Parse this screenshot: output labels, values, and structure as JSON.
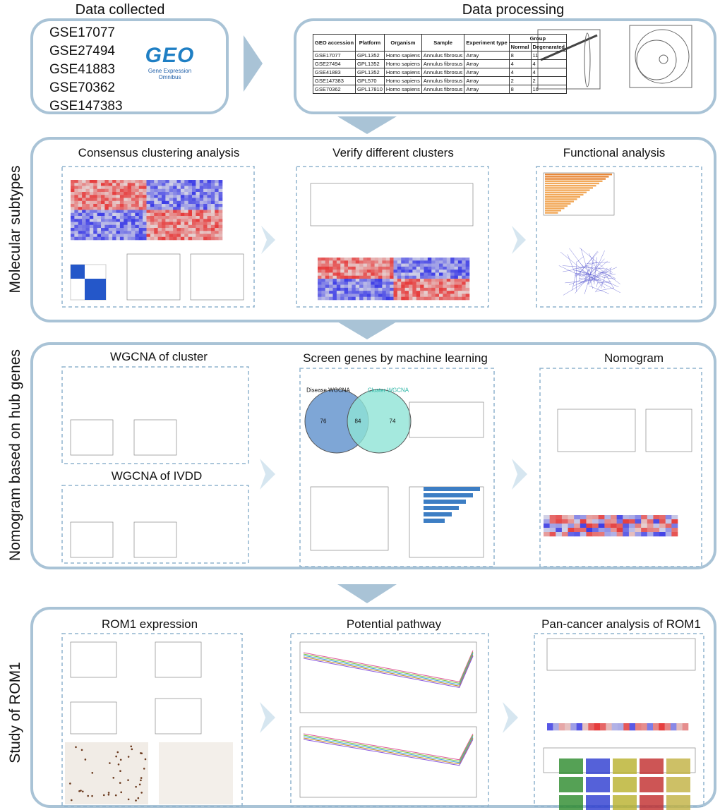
{
  "header": {
    "data_collected": "Data collected",
    "data_processing": "Data processing"
  },
  "datasets": [
    "GSE17077",
    "GSE27494",
    "GSE41883",
    "GSE70362",
    "GSE147383"
  ],
  "geo_logo": {
    "mark": "GEO",
    "caption": "Gene Expression Omnibus"
  },
  "table": {
    "columns": [
      "GEO accession",
      "Platform",
      "Organism",
      "Sample",
      "Experiment type"
    ],
    "group": "Group",
    "subcolumns": [
      "Normal",
      "Degenarated"
    ],
    "rows": [
      [
        "GSE17077",
        "GPL1352",
        "Homo sapiens",
        "Annulus fibrosus",
        "Array",
        "8",
        "11"
      ],
      [
        "GSE27494",
        "GPL1352",
        "Homo sapiens",
        "Annulus fibrosus",
        "Array",
        "4",
        "4"
      ],
      [
        "GSE41883",
        "GPL1352",
        "Homo sapiens",
        "Annulus fibrosus",
        "Array",
        "4",
        "4"
      ],
      [
        "GSE147383",
        "GPL570",
        "Homo sapiens",
        "Annulus fibrosus",
        "Array",
        "2",
        "2"
      ],
      [
        "GSE70362",
        "GPL17810",
        "Homo sapiens",
        "Annulus fibrosus",
        "Array",
        "8",
        "16"
      ]
    ]
  },
  "sections": [
    {
      "label": "Molecular subtypes",
      "panels": [
        "Consensus clustering analysis",
        "Verify different clusters",
        "Functional analysis"
      ]
    },
    {
      "label": "Nomogram based on hub genes",
      "panels": [
        "WGCNA of cluster",
        "Screen genes by machine learning",
        "Nomogram",
        "WGCNA of IVDD"
      ]
    },
    {
      "label": "Study of ROM1",
      "panels": [
        "ROM1 expression",
        "Potential pathway",
        "Pan-cancer analysis of ROM1"
      ]
    }
  ],
  "venn": {
    "left": "Disease WGCNA",
    "right": "Cluster WGCNA",
    "counts": [
      "76",
      "84",
      "74"
    ]
  }
}
